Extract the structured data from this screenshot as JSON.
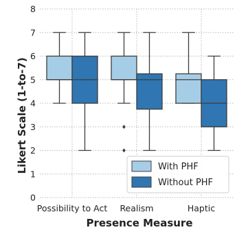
{
  "chart_data": {
    "type": "box",
    "xlabel": "Presence Measure",
    "ylabel": "Likert Scale (1-to-7)",
    "ylim": [
      0,
      8
    ],
    "yticks": [
      0,
      1,
      2,
      3,
      4,
      5,
      6,
      7,
      8
    ],
    "categories": [
      "Possibility to Act",
      "Realism",
      "Haptic"
    ],
    "grid": "dotted",
    "legend": {
      "placement": "bottom-right"
    },
    "series": [
      {
        "name": "With PHF",
        "color": "#a6cde6",
        "boxes": [
          {
            "min": 4,
            "q1": 5,
            "median": 5,
            "q3": 6,
            "max": 7,
            "outliers": []
          },
          {
            "min": 4,
            "q1": 5,
            "median": 5,
            "q3": 6,
            "max": 7,
            "outliers": [
              3,
              2
            ]
          },
          {
            "min": 4,
            "q1": 4,
            "median": 5,
            "q3": 5.25,
            "max": 7,
            "outliers": []
          }
        ]
      },
      {
        "name": "Without PHF",
        "color": "#2f76b3",
        "boxes": [
          {
            "min": 2,
            "q1": 4,
            "median": 5,
            "q3": 6,
            "max": 7,
            "outliers": []
          },
          {
            "min": 2,
            "q1": 3.75,
            "median": 5,
            "q3": 5.25,
            "max": 7,
            "outliers": []
          },
          {
            "min": 2,
            "q1": 3,
            "median": 4,
            "q3": 5,
            "max": 6,
            "outliers": []
          }
        ]
      }
    ]
  }
}
